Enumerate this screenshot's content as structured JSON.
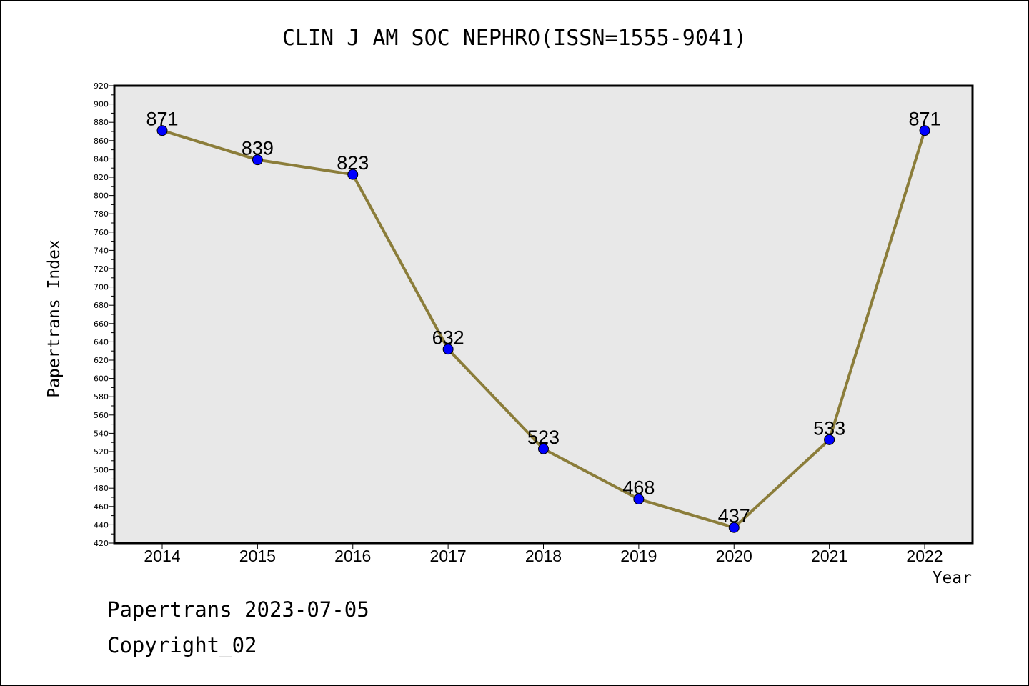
{
  "chart_data": {
    "type": "line",
    "title": "CLIN J AM SOC NEPHRO(ISSN=1555-9041)",
    "xlabel": "Year",
    "ylabel": "Papertrans Index",
    "categories": [
      "2014",
      "2015",
      "2016",
      "2017",
      "2018",
      "2019",
      "2020",
      "2021",
      "2022"
    ],
    "series": [
      {
        "values": [
          871,
          839,
          823,
          632,
          523,
          468,
          437,
          533,
          871
        ]
      }
    ],
    "data_labels": [
      "871",
      "839",
      "823",
      "632",
      "523",
      "468",
      "437",
      "533",
      "871"
    ],
    "ylim": [
      420,
      920
    ],
    "y_tick_step": 20,
    "grid": false,
    "line_color": "#8b7d3a",
    "marker_color": "#0000ff",
    "plot_background": "#e8e8e8"
  },
  "footer": {
    "line1": "Papertrans 2023-07-05",
    "line2": "Copyright_02"
  }
}
